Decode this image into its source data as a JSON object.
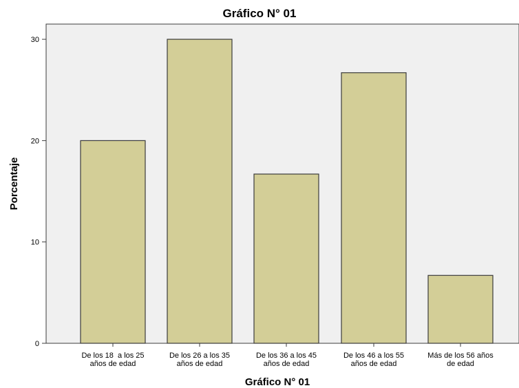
{
  "colors": {
    "plot_background": "#f0f0f0",
    "bar_fill": "#d3ce97",
    "bar_stroke": "#3b3b3b",
    "axis": "#3b3b3b",
    "text": "#000000"
  },
  "chart_data": {
    "type": "bar",
    "title": "Gráfico N° 01",
    "xlabel": "Gráfico N° 01",
    "ylabel": "Porcentaje",
    "categories": [
      [
        "De los 18  a los 25",
        "años de edad"
      ],
      [
        "De los 26 a los 35",
        "años de edad"
      ],
      [
        "De los 36 a los 45",
        "años de edad"
      ],
      [
        "De los 46 a los 55",
        "años de edad"
      ],
      [
        "Más de los 56 años",
        "de edad"
      ]
    ],
    "values": [
      20.0,
      30.0,
      16.7,
      26.7,
      6.7
    ],
    "ylim": [
      0,
      31.5
    ],
    "yticks": [
      0,
      10,
      20,
      30
    ],
    "ytick_labels": [
      "0",
      "10",
      "20",
      "30"
    ],
    "grid": false,
    "legend": "none"
  }
}
